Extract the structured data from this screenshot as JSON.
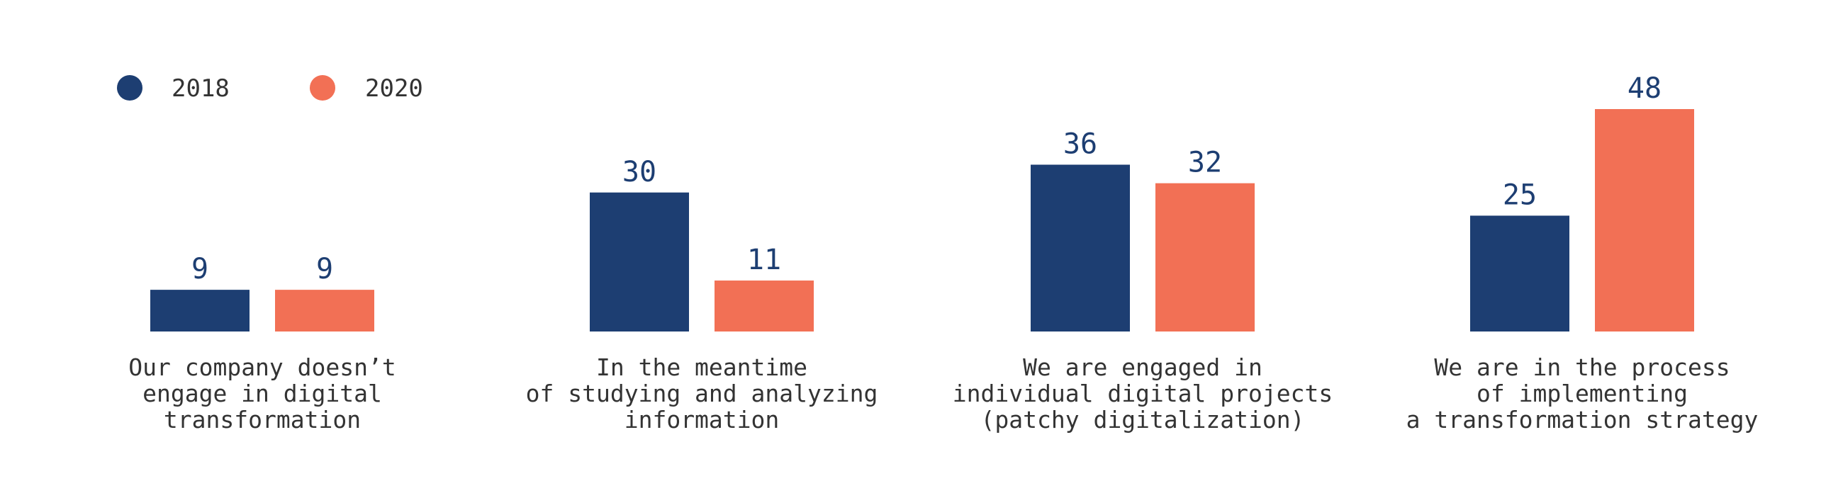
{
  "chart_data": {
    "type": "bar",
    "categories": [
      [
        "Our company doesn’t",
        "engage in digital",
        "transformation"
      ],
      [
        "In the meantime",
        "of studying and analyzing",
        "information"
      ],
      [
        "We are engaged in",
        "individual digital projects",
        "(patchy digitalization)"
      ],
      [
        "We are in the process",
        "of implementing",
        "a transformation strategy"
      ]
    ],
    "series": [
      {
        "name": "2018",
        "color": "#1d3e72",
        "values": [
          9,
          30,
          36,
          25
        ]
      },
      {
        "name": "2020",
        "color": "#f27055",
        "values": [
          9,
          11,
          32,
          48
        ]
      }
    ],
    "ylim": [
      0,
      48
    ],
    "legend_position": "top-left",
    "grid": false
  }
}
